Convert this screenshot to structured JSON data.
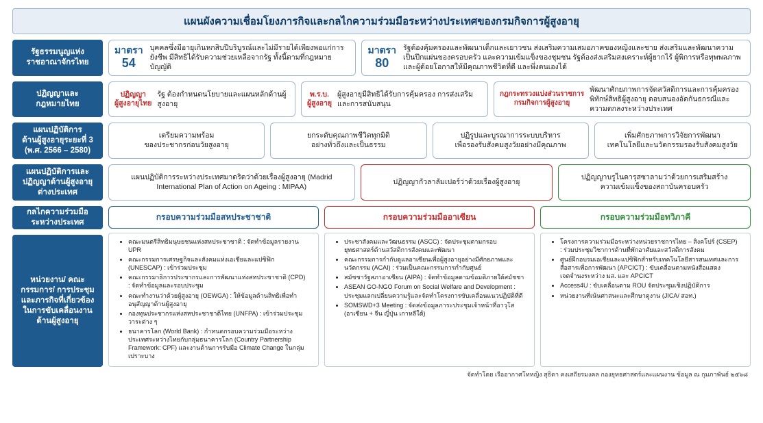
{
  "title": "แผนผังความเชื่อมโยงภารกิจและกลไกความร่วมมือระหว่างประเทศของกรมกิจการผู้สูงอายุ",
  "colors": {
    "header_blue": "#1e5a8e",
    "banner_bg": "#e8eef5",
    "box_border": "#9fb6d2",
    "red": "#c22c2c",
    "green": "#2f8a3a",
    "text": "#222222",
    "white": "#ffffff"
  },
  "rows": {
    "constitution": {
      "label": "รัฐธรรมนูญแห่ง\nราชอาณาจักรไทย",
      "a": {
        "head": "มาตรา",
        "num": "54",
        "text": "บุคคลซึ่งมีอายุเกินหกสิบปีบริบูรณ์และไม่มีรายได้เพียงพอแก่การยังชีพ มีสิทธิได้รับความช่วยเหลือจากรัฐ ทั้งนี้ตามที่กฎหมายบัญญัติ"
      },
      "b": {
        "head": "มาตรา",
        "num": "80",
        "text": "รัฐต้องคุ้มครองและพัฒนาเด็กและเยาวชน ส่งเสริมความเสมอภาคของหญิงและชาย ส่งเสริมและพัฒนาความเป็นปึกแผ่นของครอบครัว และความเข้มแข็งของชุมชน รัฐต้องส่งเสริมสงเคราะห์ผู้ยากไร้ ผู้พิการหรือทุพพลภาพและผู้ด้อยโอกาสให้มีคุณภาพชีวิตที่ดี และพึ่งตนเองได้"
      }
    },
    "laws": {
      "label": "ปฏิญญาและ\nกฎหมายไทย",
      "a": {
        "head": "ปฏิญญา\nผู้สูงอายุไทย",
        "text": "รัฐ ต้องกำหนดนโยบายและแผนหลักด้านผู้สูงอายุ"
      },
      "b": {
        "head": "พ.ร.บ.\nผู้สูงอายุ",
        "text": "ผู้สูงอายุมีสิทธิได้รับการคุ้มครอง การส่งเสริมและการสนับสนุน"
      },
      "c": {
        "head": "กฎกระทรวงแบ่งส่วนราชการ\nกรมกิจการผู้สูงอายุ",
        "text": "พัฒนาศักยภาพการจัดสวัสดิการและการคุ้มครองพิทักษ์สิทธิผู้สูงอายุ ตอบสนองอัตกันธกรณีและความตกลงระหว่างประเทศ"
      }
    },
    "plan3": {
      "label": "แผนปฏิบัติการ\nด้านผู้สูงอายุระยะที่ 3\n(พ.ศ. 2566 – 2580)",
      "items": [
        "เตรียมความพร้อม\nของประชากรก่อนวัยสูงอายุ",
        "ยกระดับคุณภาพชีวิตทุกมิติ\nอย่างทั่วถึงและเป็นธรรม",
        "ปฏิรูปและบูรณาการระบบบริหาร\nเพื่อรองรับสังคมสูงวัยอย่างมีคุณภาพ",
        "เพิ่มศักยภาพการวิจัยการพัฒนา\nเทคโนโลยีและนวัตกรรมรองรับสังคมสูงวัย"
      ]
    },
    "intl_plans": {
      "label": "แผนปฏิบัติการและ\nปฏิญญาด้านผู้สูงอายุ\nต่างประเทศ",
      "a": "แผนปฏิบัติการระหว่างประเทศมาดริดว่าด้วยเรื่องผู้สูงอายุ\n(Madrid International Plan of Action on Ageing : MIPAA)",
      "b": "ปฏิญญากัวลาลัมเปอร์ว่าด้วยเรื่องผู้สูงอายุ",
      "c": "ปฏิญญาบรูไนดารุสซาลามว่าด้วยการเสริมสร้าง\nความเข้มแข็งของสถาบันครอบครัว"
    },
    "coop": {
      "label1": "กลไกความร่วมมือ\nระหว่างประเทศ",
      "label2": "หน่วยงาน/\nคณะกรรมการ/\nการประชุม\nและภารกิจที่เกี่ยวข้อง\nในการขับเคลื่อนงาน\nด้านผู้สูงอายุ",
      "col1": {
        "header": "กรอบความร่วมมือสหประชาชาติ",
        "items": [
          "คณะมนตรีสิทธิมนุษยชนแห่งสหประชาชาติ : จัดทำข้อมูลรายงาน UPR",
          "คณะกรรมการเศรษฐกิจและสังคมแห่งเอเชียและแปซิฟิก (UNESCAP) : เข้าร่วมประชุม",
          "คณะกรรมาธิการประชากรและการพัฒนาแห่งสหประชาชาติ (CPD) : จัดทำข้อมูลและรอบประชุม",
          "คณะทำงานว่าด้วยผู้สูงอายุ (OEWGA) : ให้ข้อมูลด้านสิทธิเพื่อทำอนุสัญญาด้านผู้สูงอายุ",
          "กองทุนประชากรแห่งสหประชาชาติไทย (UNFPA) : เข้าร่วมประชุมวาระต่าง ๆ",
          "ธนาคารโลก (World Bank) : กำหนดกรอบความร่วมมือระหว่างประเทศระหว่างไทยกับกลุ่มธนาคารโลก (Country Partnership Framework: CPF) และงานด้านการรับมือ Climate Change ในกลุ่มเปราะบาง"
        ]
      },
      "col2": {
        "header": "กรอบความร่วมมืออาเซียน",
        "items": [
          "ประชาสังคมและวัฒนธรรม (ASCC) : จัดประชุมตามกรอบยุทธศาสตร์ด้านสวัสดิการสังคมและพัฒนา",
          "คณะกรรมการกำกับดูแลอาเซียนเพื่อผู้สูงอายุอย่างมีศักยภาพและนวัตกรรม (ACAI) : ร่วมเป็นคณะกรรมการกำกับศูนย์",
          "สมัชชารัฐสภาอาเซียน (AIPA) : จัดทำข้อมูลตามข้อมติภายใต้สมัชชา",
          "ASEAN GO-NGO Forum on Social Welfare and Development : ประชุมแลกเปลี่ยนความรู้และจัดทำโครงการขับเคลื่อนแนวปฏิบัติที่ดี",
          "SOMSWD+3 Meeting : จัดส่งข้อมูลภาระประชุมเจ้าหน้าที่อาวุโส (อาเซียน + จีน ญี่ปุ่น เกาหลีใต้)"
        ]
      },
      "col3": {
        "header": "กรอบความร่วมมือทวิภาคี",
        "items": [
          "โครงการความร่วมมือระหว่างหน่วยราชการไทย – สิงคโปร์ (CSEP) : ร่วมประชุมวิชาการด้านที่พักอาศัยและสวัสดิการสังคม",
          "ศูนย์ฝึกอบรมเอเชียและแปซิฟิกสำหรับเทคโนโลยีสารสนเทศและการสื่อสารเพื่อการพัฒนา (APCICT) : ขับเคลื่อนตามหนังสือแสดงเจตจำนงระหว่าง มส. และ APCICT",
          "Access4U : ขับเคลื่อนตาม ROU จัดประชุมเชิงปฏิบัติการ",
          "หน่วยงานที่เน้นศาสนะและศึกษาดูงาน (JICA/ สอท.)"
        ]
      }
    }
  },
  "footer": "จัดทำโดย เรืออากาศโทหญิง สุธิดา คงเสถียรมงคล กองยุทธศาสตร์และแผนงาน ข้อมูล ณ กุมภาพันธ์ ๒๕๖๘"
}
